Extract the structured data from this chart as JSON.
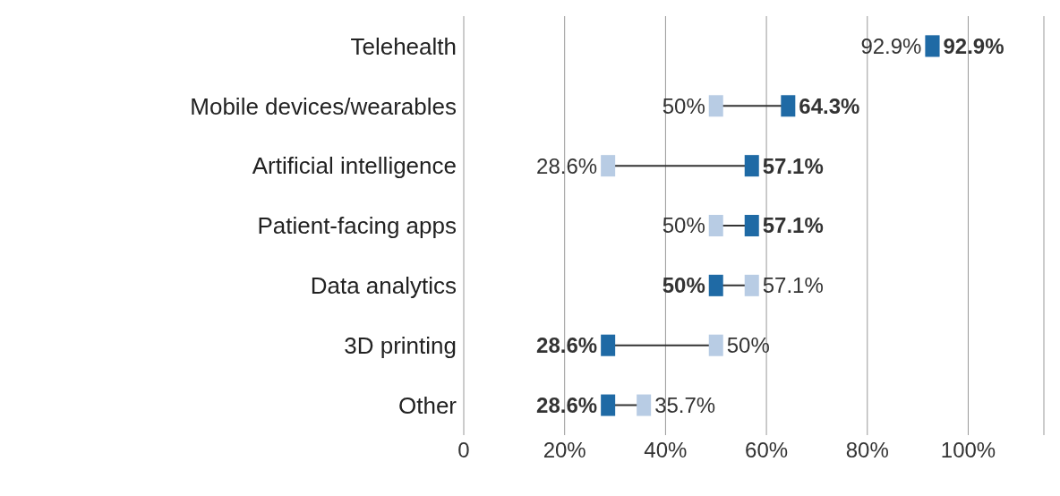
{
  "chart_data": {
    "type": "scatter",
    "orientation": "horizontal",
    "categories": [
      "Telehealth",
      "Mobile devices/wearables",
      "Artificial intelligence",
      "Patient-facing apps",
      "Data analytics",
      "3D printing",
      "Other"
    ],
    "series": [
      {
        "color": "#b8cce4",
        "values": [
          92.9,
          50,
          28.6,
          50,
          57.1,
          50,
          35.7
        ],
        "value_labels": [
          "92.9%",
          "50%",
          "28.6%",
          "50%",
          "57.1%",
          "50%",
          "35.7%"
        ]
      },
      {
        "color": "#1f6aa5",
        "values": [
          92.9,
          64.3,
          57.1,
          57.1,
          50,
          28.6,
          28.6
        ],
        "value_labels": [
          "92.9%",
          "64.3%",
          "57.1%",
          "57.1%",
          "50%",
          "28.6%",
          "28.6%"
        ]
      }
    ],
    "xlim": [
      0,
      115
    ],
    "xticks": [
      0,
      {
        "value": 20,
        "label": "20%"
      },
      {
        "value": 40,
        "label": "40%"
      },
      {
        "value": 60,
        "label": "60%"
      },
      {
        "value": 80,
        "label": "80%"
      },
      {
        "value": 100,
        "label": "100%"
      }
    ],
    "grid": "x",
    "marker": "square"
  }
}
